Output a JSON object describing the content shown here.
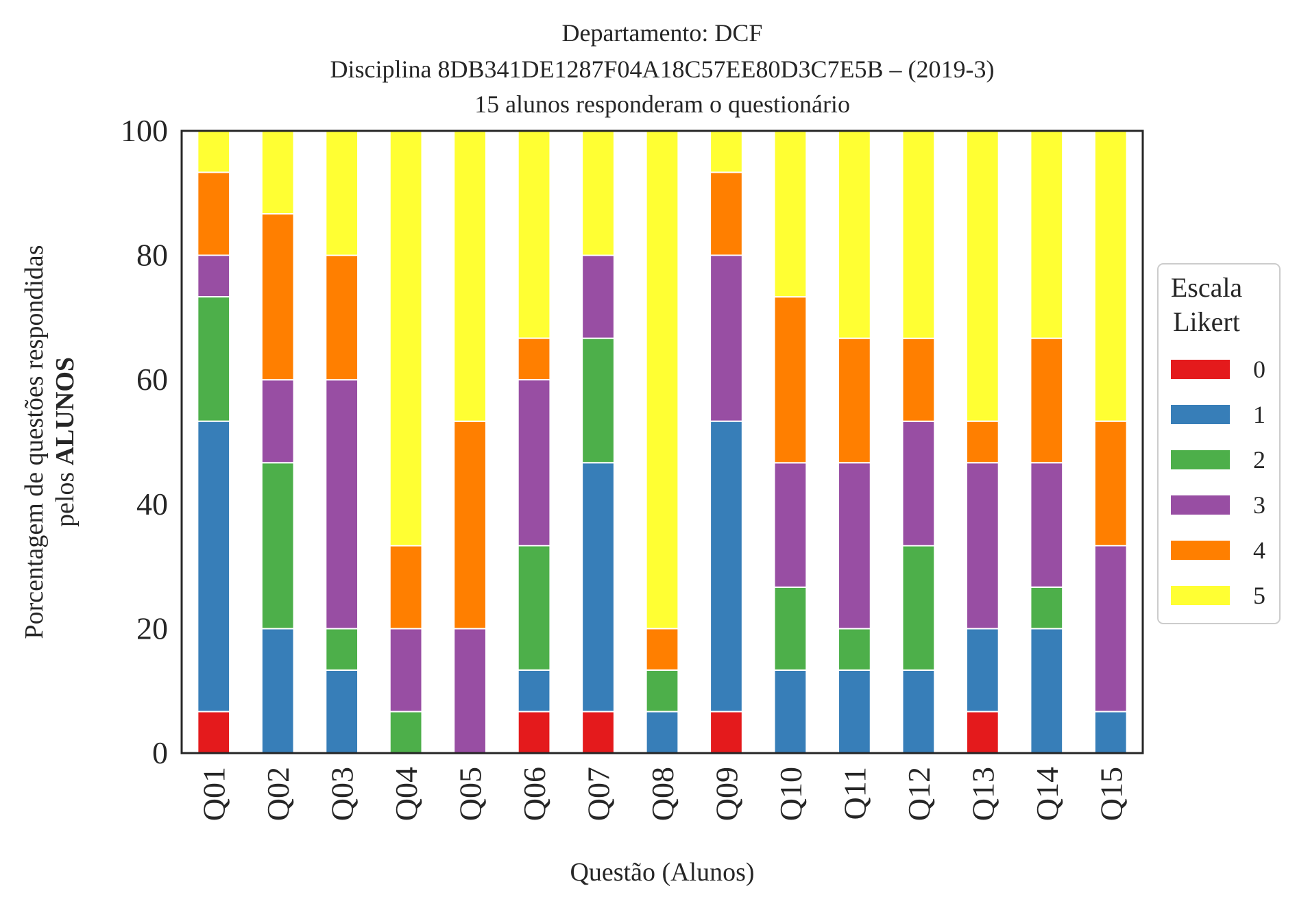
{
  "chart_data": {
    "type": "bar",
    "stacked": true,
    "title": [
      "Departamento: DCF",
      "Disciplina 8DB341DE1287F04A18C57EE80D3C7E5B – (2019-3)",
      "15 alunos responderam o questionário"
    ],
    "xlabel": "Questão (Alunos)",
    "ylabel_line1": "Porcentagem de questões respondidas",
    "ylabel_line2_prefix": "pelos ",
    "ylabel_line2_bold": "ALUNOS",
    "ylim": [
      0,
      100
    ],
    "yticks": [
      0,
      20,
      40,
      60,
      80,
      100
    ],
    "grid": false,
    "legend_position": "right",
    "legend_title": [
      "Escala",
      "Likert"
    ],
    "categories": [
      "Q01",
      "Q02",
      "Q03",
      "Q04",
      "Q05",
      "Q06",
      "Q07",
      "Q08",
      "Q09",
      "Q10",
      "Q11",
      "Q12",
      "Q13",
      "Q14",
      "Q15"
    ],
    "series": [
      {
        "name": "0",
        "color": "#e41a1c",
        "values": [
          6.67,
          0,
          0,
          0,
          0,
          6.67,
          6.67,
          0,
          6.67,
          0,
          0,
          0,
          6.67,
          0,
          0
        ]
      },
      {
        "name": "1",
        "color": "#377eb8",
        "values": [
          46.67,
          20,
          13.33,
          0,
          0,
          6.67,
          40,
          6.67,
          46.67,
          13.33,
          13.33,
          13.33,
          13.33,
          20,
          6.67
        ]
      },
      {
        "name": "2",
        "color": "#4daf4a",
        "values": [
          20,
          26.67,
          6.67,
          6.67,
          0,
          20,
          20,
          6.67,
          0,
          13.33,
          6.67,
          20,
          0,
          6.67,
          0
        ]
      },
      {
        "name": "3",
        "color": "#984ea3",
        "values": [
          6.67,
          13.33,
          40,
          13.33,
          20,
          26.67,
          13.33,
          0,
          26.67,
          20,
          26.67,
          20,
          26.67,
          20,
          26.67
        ]
      },
      {
        "name": "4",
        "color": "#ff7f00",
        "values": [
          13.33,
          26.67,
          20,
          13.33,
          33.33,
          6.67,
          0,
          6.67,
          13.33,
          26.67,
          20,
          13.33,
          6.67,
          20,
          20
        ]
      },
      {
        "name": "5",
        "color": "#ffff33",
        "values": [
          6.67,
          13.33,
          20,
          66.67,
          46.67,
          33.33,
          20,
          80,
          6.67,
          26.67,
          33.33,
          33.33,
          46.67,
          33.33,
          46.67
        ]
      }
    ]
  }
}
